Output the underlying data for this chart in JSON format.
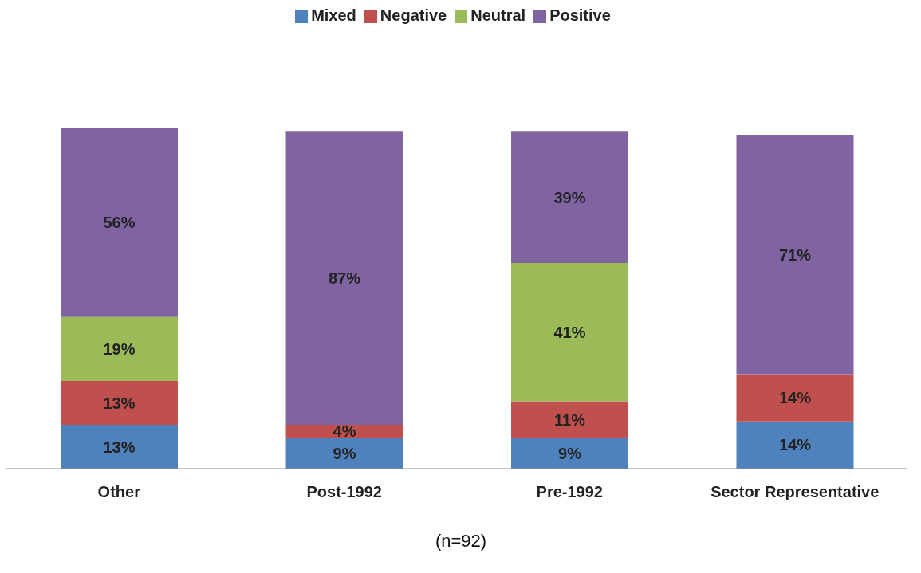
{
  "chart_data": {
    "type": "bar",
    "stacked": true,
    "categories": [
      "Other",
      "Post-1992",
      "Pre-1992",
      "Sector Representative"
    ],
    "series": [
      {
        "name": "Mixed",
        "color": "#4f81bd",
        "values": [
          13,
          9,
          9,
          14
        ],
        "value_labels": [
          "13%",
          "9%",
          "9%",
          "14%"
        ]
      },
      {
        "name": "Negative",
        "color": "#c0504d",
        "values": [
          13,
          4,
          11,
          14
        ],
        "value_labels": [
          "13%",
          "4%",
          "11%",
          "14%"
        ]
      },
      {
        "name": "Neutral",
        "color": "#9bbb59",
        "values": [
          19,
          null,
          41,
          null
        ],
        "value_labels": [
          "19%",
          null,
          "41%",
          null
        ]
      },
      {
        "name": "Positive",
        "color": "#8064a2",
        "values": [
          56,
          87,
          39,
          71
        ],
        "value_labels": [
          "56%",
          "87%",
          "39%",
          "71%"
        ]
      }
    ],
    "legend": "top",
    "grid": false,
    "annotations": [
      "(n=92)"
    ]
  }
}
